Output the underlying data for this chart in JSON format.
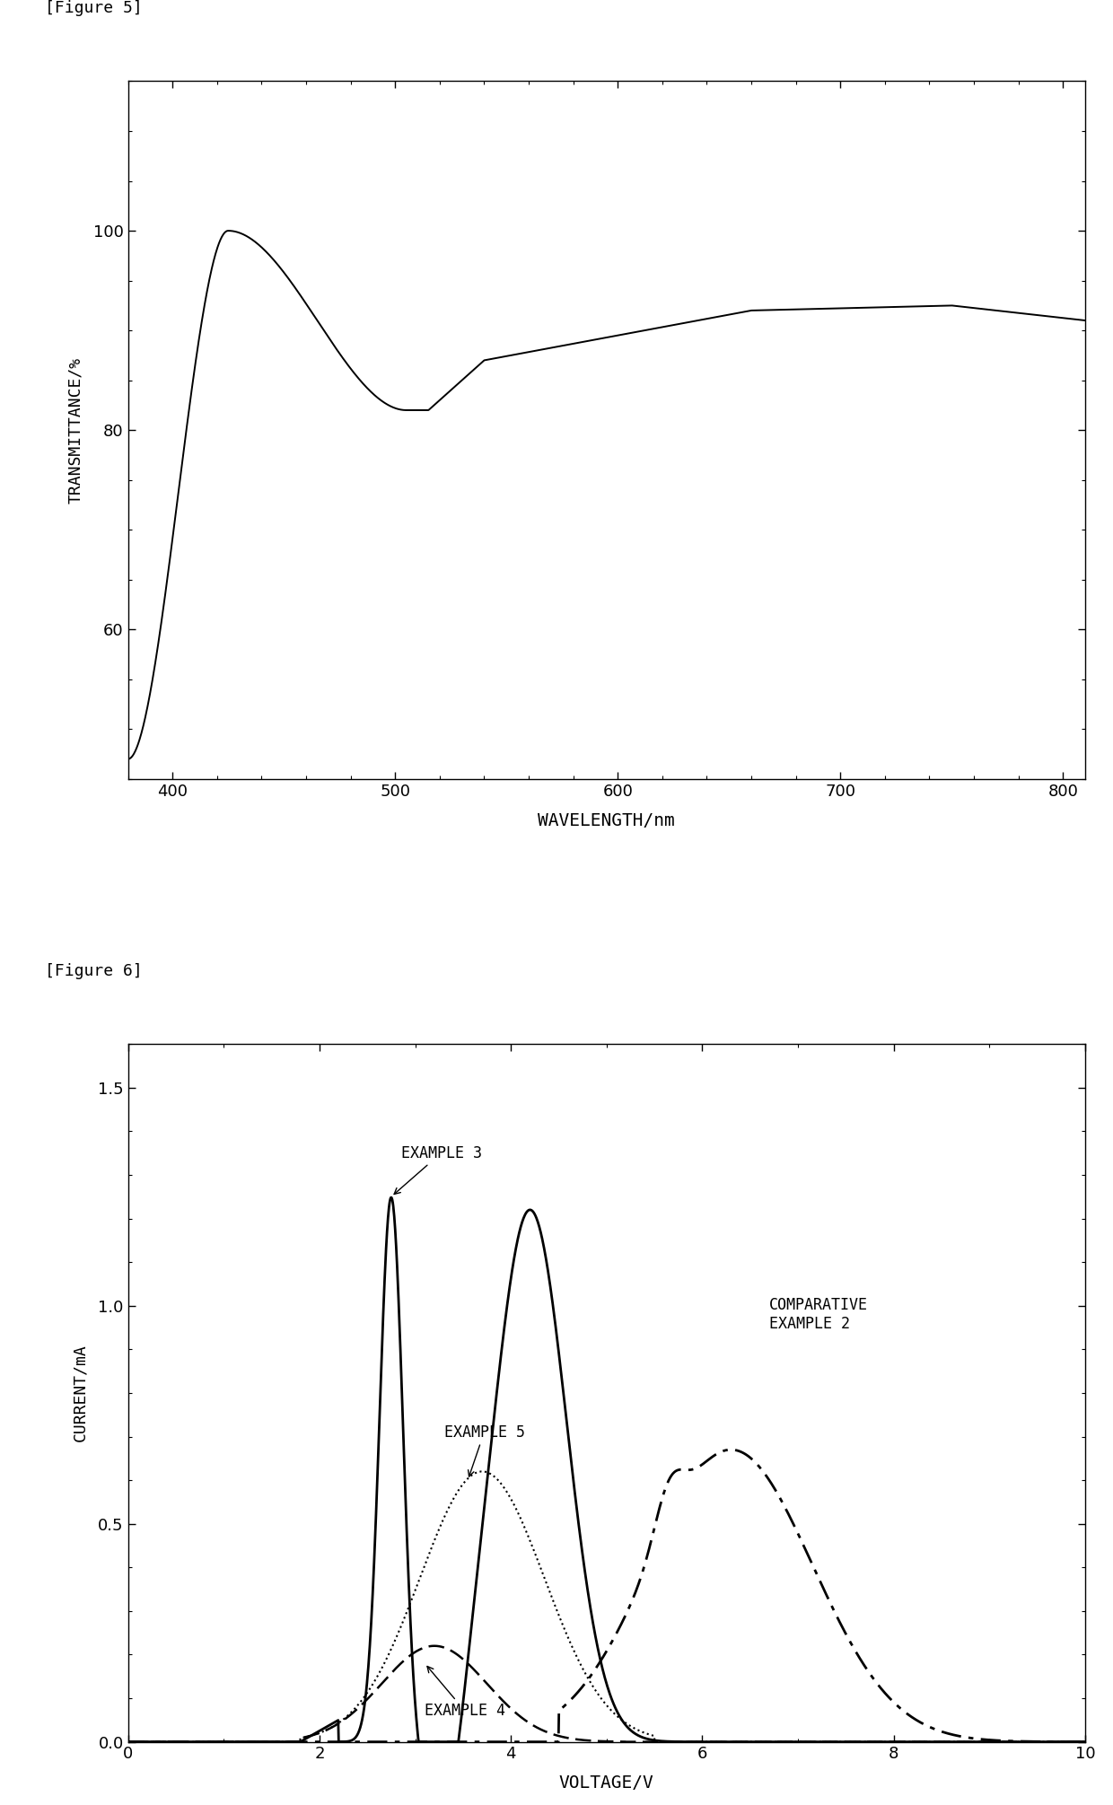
{
  "fig5_title": "[Figure 5]",
  "fig6_title": "[Figure 6]",
  "fig5_xlabel": "WAVELENGTH/nm",
  "fig5_ylabel": "TRANSMITTANCE/%",
  "fig5_xlim": [
    380,
    810
  ],
  "fig5_ylim": [
    45,
    115
  ],
  "fig5_yticks": [
    60,
    80,
    100
  ],
  "fig5_xticks": [
    400,
    500,
    600,
    700,
    800
  ],
  "fig6_xlabel": "VOLTAGE/V",
  "fig6_ylabel": "CURRENT/mA",
  "fig6_xlim": [
    0,
    10
  ],
  "fig6_ylim": [
    0,
    1.6
  ],
  "fig6_yticks": [
    0,
    0.5,
    1.0,
    1.5
  ],
  "fig6_xticks": [
    0,
    2,
    4,
    6,
    8,
    10
  ],
  "background_color": "#ffffff",
  "line_color": "#000000"
}
